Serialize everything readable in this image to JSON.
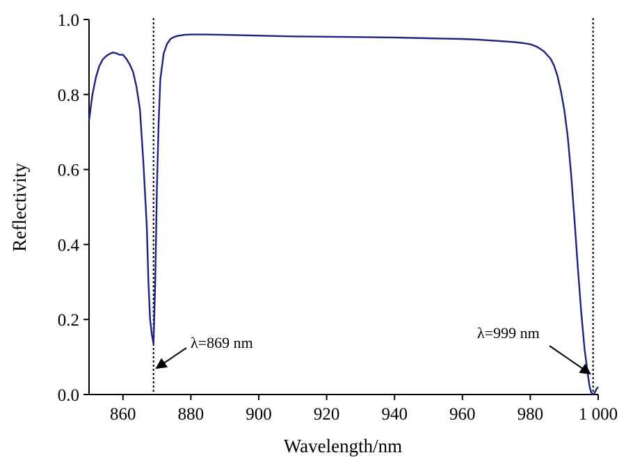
{
  "chart_data": {
    "type": "line",
    "title": "",
    "xlabel": "Wavelength/nm",
    "ylabel": "Reflectivity",
    "xlim": [
      850,
      1000
    ],
    "ylim": [
      0.0,
      1.0
    ],
    "x_ticks": [
      860,
      880,
      900,
      920,
      940,
      960,
      980,
      1000
    ],
    "x_tick_labels": [
      "860",
      "880",
      "900",
      "920",
      "940",
      "960",
      "980",
      "1 000"
    ],
    "y_ticks": [
      0.0,
      0.2,
      0.4,
      0.6,
      0.8,
      1.0
    ],
    "y_tick_labels": [
      "0.0",
      "0.2",
      "0.4",
      "0.6",
      "0.8",
      "1.0"
    ],
    "grid": false,
    "line_color": "#1a237e",
    "series": [
      {
        "x": [
          850,
          851,
          852,
          853,
          854,
          855,
          856,
          857,
          858,
          859,
          860,
          861,
          862,
          863,
          864,
          865,
          866,
          867,
          867.5,
          868,
          868.5,
          869,
          869.5,
          870,
          870.5,
          871,
          872,
          873,
          874,
          875,
          876,
          878,
          880,
          884,
          890,
          900,
          910,
          920,
          930,
          940,
          950,
          960,
          965,
          970,
          975,
          978,
          980,
          982,
          984,
          986,
          987,
          988,
          989,
          990,
          991,
          992,
          993,
          994,
          995,
          996,
          997,
          997.5,
          998,
          998.5,
          999,
          999.5,
          1000
        ],
        "y": [
          0.73,
          0.8,
          0.845,
          0.875,
          0.893,
          0.902,
          0.908,
          0.912,
          0.91,
          0.906,
          0.906,
          0.895,
          0.88,
          0.86,
          0.82,
          0.76,
          0.62,
          0.45,
          0.3,
          0.2,
          0.16,
          0.135,
          0.3,
          0.55,
          0.72,
          0.84,
          0.91,
          0.935,
          0.948,
          0.953,
          0.956,
          0.959,
          0.96,
          0.96,
          0.959,
          0.957,
          0.955,
          0.954,
          0.953,
          0.952,
          0.95,
          0.948,
          0.946,
          0.943,
          0.94,
          0.937,
          0.934,
          0.927,
          0.915,
          0.895,
          0.877,
          0.85,
          0.81,
          0.76,
          0.69,
          0.59,
          0.47,
          0.34,
          0.22,
          0.12,
          0.05,
          0.02,
          0.005,
          0.0,
          0.005,
          0.015,
          0.02
        ]
      }
    ],
    "marker_lines": [
      {
        "x": 869,
        "label": "λ=869 nm",
        "arrow_to_y": 0.07
      },
      {
        "x": 998.5,
        "label": "λ=999 nm",
        "arrow_to_y": 0.055
      }
    ]
  }
}
